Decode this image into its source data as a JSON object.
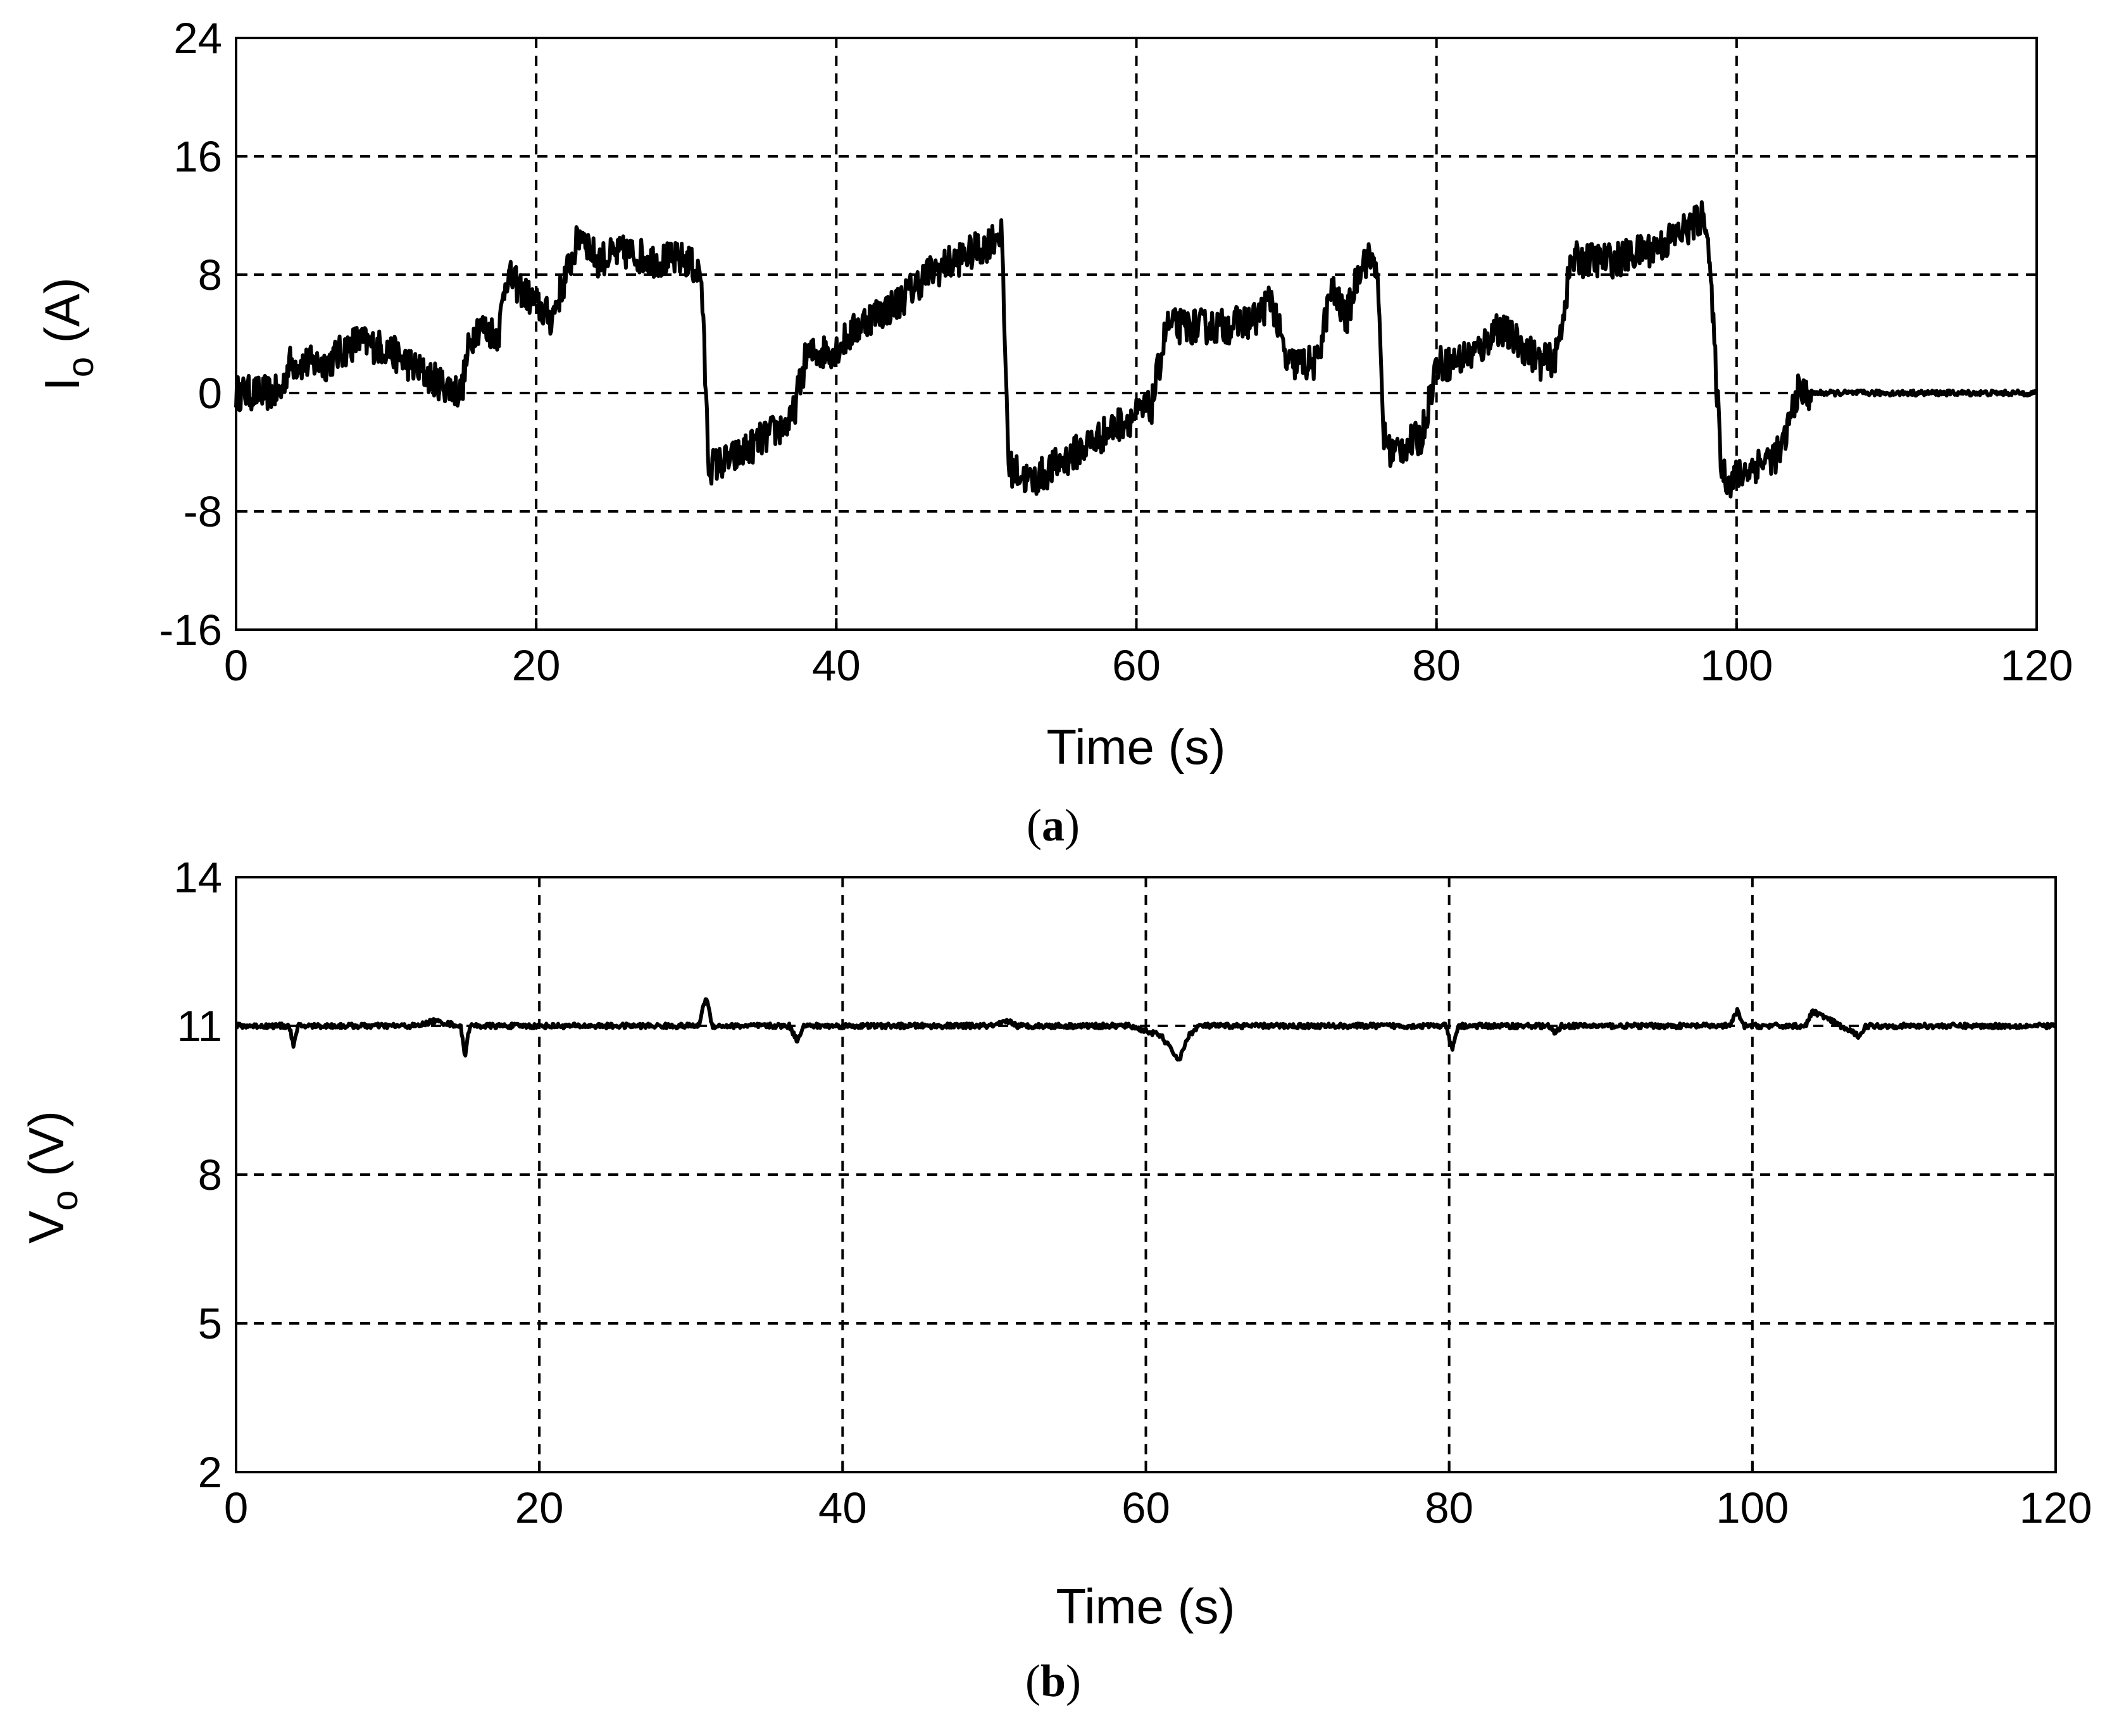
{
  "chart_data": [
    {
      "type": "line",
      "panel_label": "a",
      "xlabel": "Time (s)",
      "ylabel": {
        "main": "I",
        "sub": "o",
        "unit": " (A)"
      },
      "xlim": [
        0,
        120
      ],
      "ylim": [
        -16,
        24
      ],
      "xticks": [
        0,
        20,
        40,
        60,
        80,
        100,
        120
      ],
      "yticks": [
        -16,
        -8,
        0,
        8,
        16,
        24
      ],
      "grid": true,
      "noise_amplitude": 1.2,
      "x": [
        0,
        3,
        3.5,
        6,
        8,
        10,
        13,
        15,
        15.5,
        16,
        17.5,
        18,
        20,
        21,
        22,
        23,
        24,
        26,
        28,
        30,
        31,
        31.5,
        33,
        36,
        37,
        38,
        40,
        42,
        44,
        46,
        48,
        50,
        51,
        51.5,
        53,
        56,
        59,
        61,
        62,
        64,
        66,
        68,
        69,
        70,
        72,
        73,
        74,
        75,
        76,
        76.5,
        77,
        79,
        80,
        81,
        83,
        84,
        86,
        87,
        88,
        89,
        92,
        95,
        98,
        99,
        99.5,
        101,
        103,
        104,
        105,
        110,
        120
      ],
      "values": [
        0,
        0,
        2,
        2,
        3.5,
        3,
        1,
        0,
        3,
        4.5,
        4,
        8,
        6,
        5,
        8,
        11,
        9,
        9.5,
        9,
        9,
        8,
        -5,
        -4.5,
        -2.5,
        -2,
        2.5,
        3,
        5,
        6,
        8,
        9,
        10,
        11,
        -5,
        -6,
        -4,
        -2,
        -1,
        4.5,
        4.5,
        4.5,
        5,
        6.5,
        2,
        2,
        7,
        5,
        9,
        9,
        -3,
        -4,
        -3,
        2,
        2,
        3,
        4.5,
        3,
        2,
        2.5,
        9,
        9,
        10,
        12,
        -5,
        -6,
        -5,
        -4,
        0,
        0,
        0,
        0
      ]
    },
    {
      "type": "line",
      "panel_label": "b",
      "xlabel": "Time (s)",
      "ylabel": {
        "main": "V",
        "sub": "o",
        "unit": " (V)"
      },
      "xlim": [
        0,
        120
      ],
      "ylim": [
        2,
        14
      ],
      "xticks": [
        0,
        20,
        40,
        60,
        80,
        100,
        120
      ],
      "yticks": [
        2,
        5,
        8,
        11,
        14
      ],
      "grid": true,
      "noise_amplitude": 0.05,
      "x": [
        0,
        3.5,
        3.8,
        4.1,
        12,
        13,
        14.8,
        15.1,
        15.4,
        30.5,
        31,
        31.4,
        36.5,
        37,
        37.4,
        50,
        51,
        51.5,
        59,
        61,
        62.2,
        62.8,
        63.5,
        79.8,
        80.2,
        80.6,
        86.5,
        87,
        87.4,
        98.5,
        99,
        99.4,
        103.5,
        104,
        107,
        107.5,
        120
      ],
      "values": [
        11,
        11,
        10.6,
        11,
        11,
        11.1,
        11,
        10.4,
        11,
        11,
        11.6,
        11,
        11,
        10.7,
        11,
        11,
        11.1,
        11,
        11,
        10.8,
        10.3,
        10.8,
        11,
        11,
        10.5,
        11,
        11,
        10.85,
        11,
        11,
        11.3,
        11,
        11,
        11.3,
        10.8,
        11,
        11
      ]
    }
  ]
}
